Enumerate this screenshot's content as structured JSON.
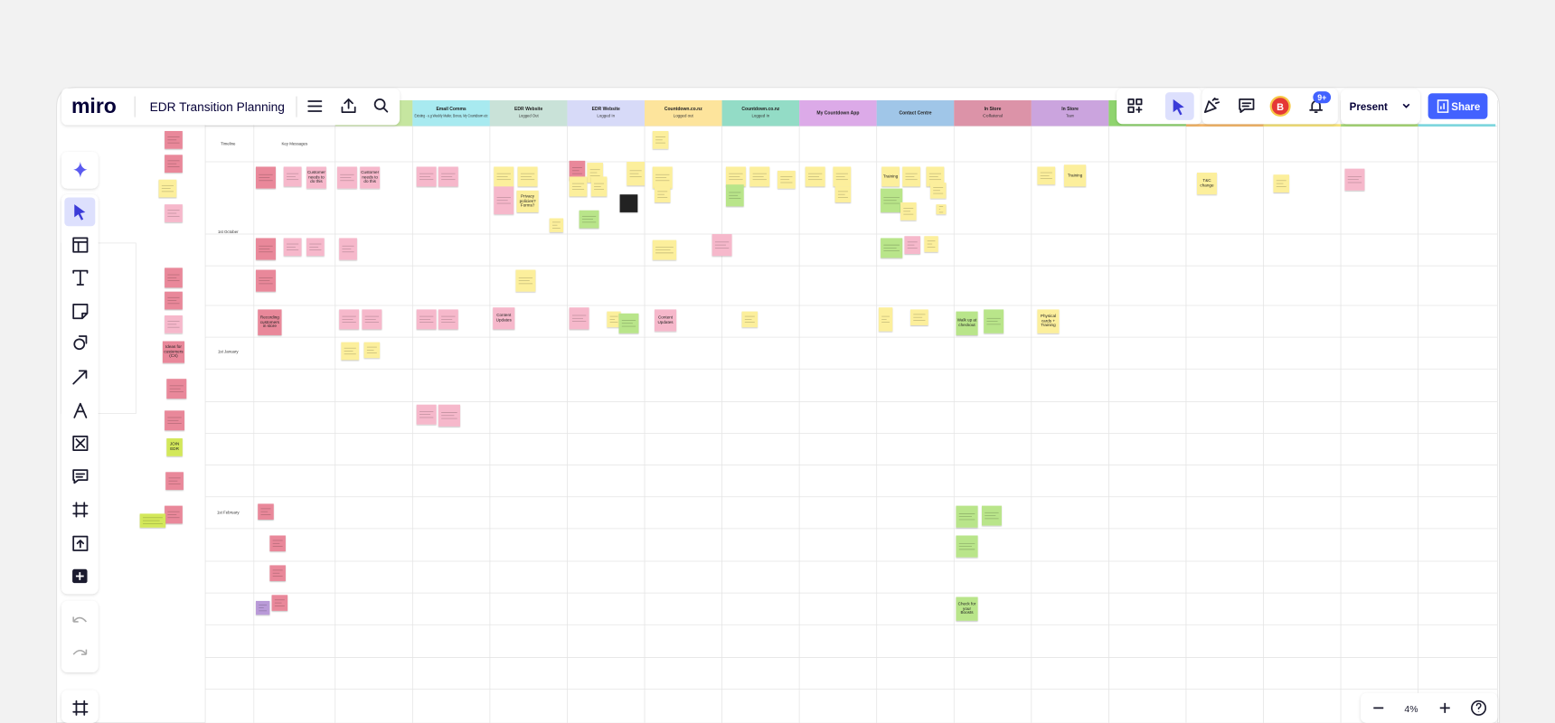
{
  "header": {
    "logo": "miro",
    "board_title": "EDR Transition Planning"
  },
  "right_toolbar": {
    "avatar": "B",
    "notifications": "9+",
    "present": "Present",
    "share": "Share"
  },
  "zoom": {
    "level": "4%"
  },
  "board": {
    "columns": [
      {
        "title": "Email Comms",
        "subtitle": "Existing - e.g Weekly Mailer, Bonus, My Countdown etc"
      },
      {
        "title": "EDR Website",
        "subtitle": "Logged Out"
      },
      {
        "title": "EDR Website",
        "subtitle": "Logged In"
      },
      {
        "title": "Countdown.co.nz",
        "subtitle": "Logged out"
      },
      {
        "title": "Countdown.co.nz",
        "subtitle": "Logged In"
      },
      {
        "title": "My Countdown App"
      },
      {
        "title": "Contact Centre"
      },
      {
        "title": "In Store",
        "subtitle": "Collateral"
      },
      {
        "title": "In Store",
        "subtitle": "Team"
      }
    ],
    "row_labels": [
      "Timeline",
      "Key Messages",
      "1st October",
      "1st January",
      "1st February"
    ],
    "notes": [
      {
        "text": "Customer needs to do this"
      },
      {
        "text": "Customer needs to do this"
      },
      {
        "text": "Recording customers in store"
      },
      {
        "text": "Content Updates"
      },
      {
        "text": "Content Updates"
      },
      {
        "text": "Privacy policies? Forms?"
      },
      {
        "text": "Training"
      },
      {
        "text": "Training"
      },
      {
        "text": "Physical cards + Training"
      },
      {
        "text": "Walk up at checkout"
      },
      {
        "text": "Check for your Boosts"
      },
      {
        "text": "JOIN EDR"
      },
      {
        "text": "Ideas for customers (CX)"
      },
      {
        "text": "T&C change"
      }
    ]
  }
}
